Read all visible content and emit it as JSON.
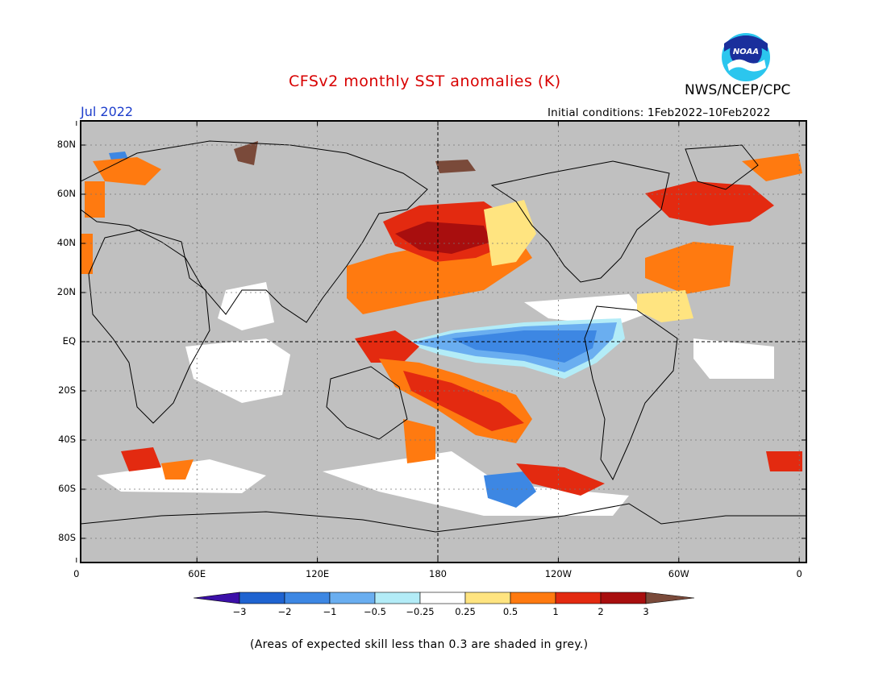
{
  "title": "CFSv2 monthly SST anomalies (K)",
  "target_month": "Jul 2022",
  "initial_conditions": "Initial conditions: 1Feb2022–10Feb2022",
  "agency": "NWS/NCEP/CPC",
  "logo_text": "NOAA",
  "footnote": "(Areas of expected skill less than 0.3 are shaded in grey.)",
  "map": {
    "lat_labels": [
      "80N",
      "60N",
      "40N",
      "20N",
      "EQ",
      "20S",
      "40S",
      "60S",
      "80S"
    ],
    "lon_labels": [
      "0",
      "60E",
      "120E",
      "180",
      "120W",
      "60W",
      "0"
    ],
    "mask_color": "#c0c0c0",
    "land_outline": "#000000"
  },
  "colorbar": {
    "tick_labels": [
      "−3",
      "−2",
      "−1",
      "−0.5",
      "−0.25",
      "0.25",
      "0.5",
      "1",
      "2",
      "3"
    ],
    "colors": [
      "#3c10a8",
      "#1f63d0",
      "#3d87e3",
      "#6aaef0",
      "#b3ecf7",
      "#ffffff",
      "#ffe480",
      "#ff7a10",
      "#e32a10",
      "#a80e0e",
      "#7a4a3a"
    ]
  },
  "chart_data": {
    "type": "heatmap",
    "title": "CFSv2 monthly SST anomalies (K)",
    "period": "Jul 2022",
    "units": "K",
    "levels": [
      -3,
      -2,
      -1,
      -0.5,
      -0.25,
      0.25,
      0.5,
      1,
      2,
      3
    ],
    "regions": [
      {
        "name": "Equatorial central-east Pacific",
        "anomaly_range": [
          -1,
          -0.5
        ]
      },
      {
        "name": "Western Pacific warm pool",
        "anomaly_range": [
          1,
          2
        ]
      },
      {
        "name": "North Pacific (Kuroshio extension)",
        "anomaly_range": [
          2,
          3
        ]
      },
      {
        "name": "South Pacific diagonal band",
        "anomaly_range": [
          1,
          2
        ]
      },
      {
        "name": "North Atlantic subpolar",
        "anomaly_range": [
          1,
          2
        ]
      },
      {
        "name": "Tropical North Atlantic",
        "anomaly_range": [
          0.25,
          0.5
        ]
      },
      {
        "name": "Southern Ocean south of Pacific",
        "anomaly_range": [
          -1,
          -0.5
        ]
      }
    ]
  }
}
